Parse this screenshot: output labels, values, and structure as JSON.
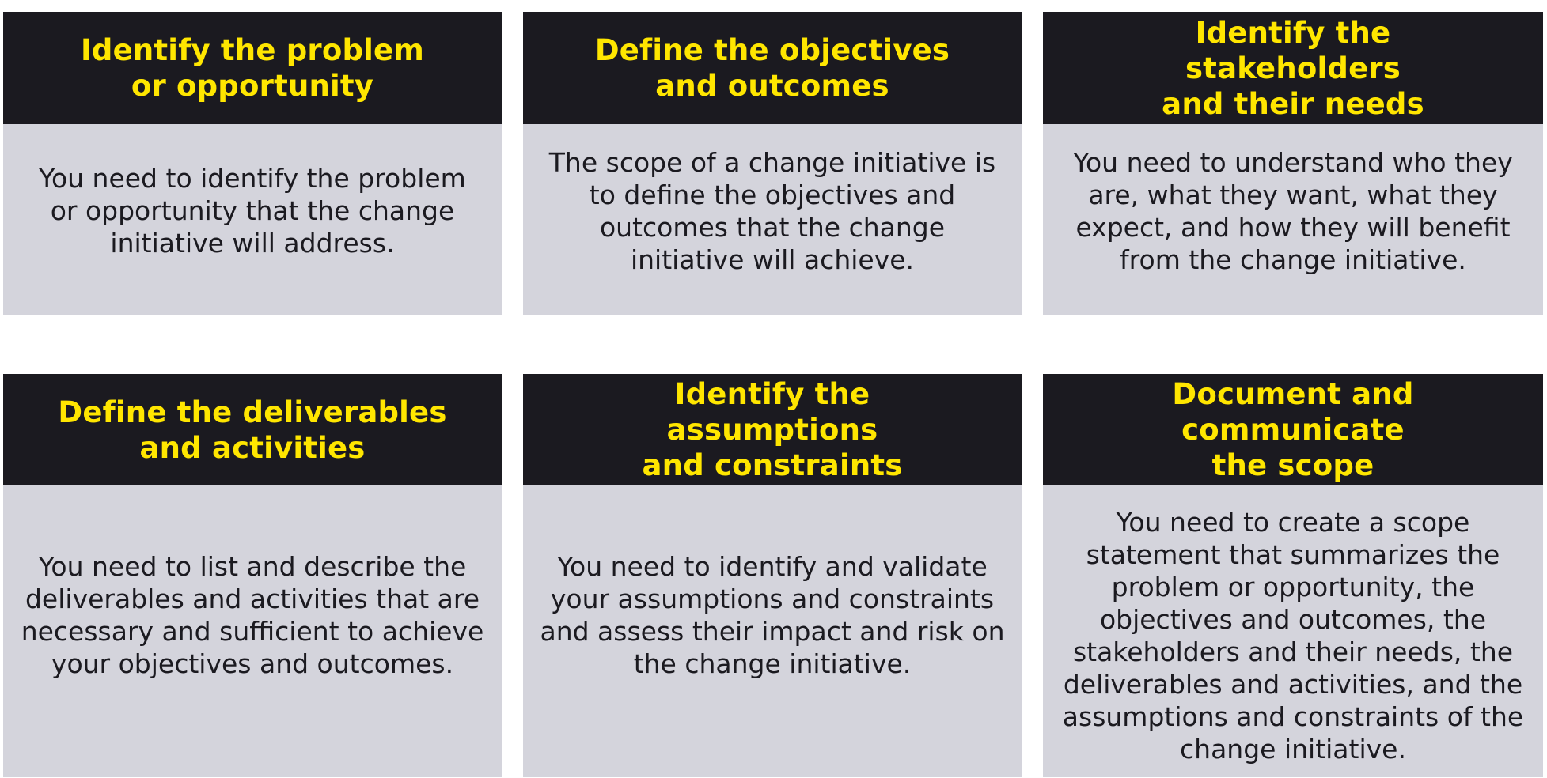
{
  "colors": {
    "header_background": "#1b1a20",
    "header_text": "#ffe600",
    "body_background": "#d4d4dc",
    "body_text": "#1b1a20"
  },
  "cards": [
    {
      "title": "Identify the problem or opportunity",
      "description": "You need to identify the problem or opportunity that the change initiative will address."
    },
    {
      "title": "Define the objectives and outcomes",
      "description": "The scope of a change initiative is to define the objectives and outcomes that the change initiative will achieve."
    },
    {
      "title": "Identify the stakeholders and their needs",
      "description": "You need to understand who they are, what they want, what they expect, and how they will benefit from the change initiative."
    },
    {
      "title": "Define the deliverables and activities",
      "description": "You need to list and describe the deliverables and activities that are necessary and sufficient to achieve your objectives and outcomes."
    },
    {
      "title": "Identify the assumptions and constraints",
      "description": "You need to identify and validate your assumptions and constraints and assess their impact and risk on the change initiative."
    },
    {
      "title": "Document and communicate the scope",
      "description": "You need to create a scope statement that summarizes the problem or opportunity, the objectives and outcomes, the stakeholders and their needs, the deliverables and activities, and the assumptions and constraints of the change initiative."
    }
  ]
}
